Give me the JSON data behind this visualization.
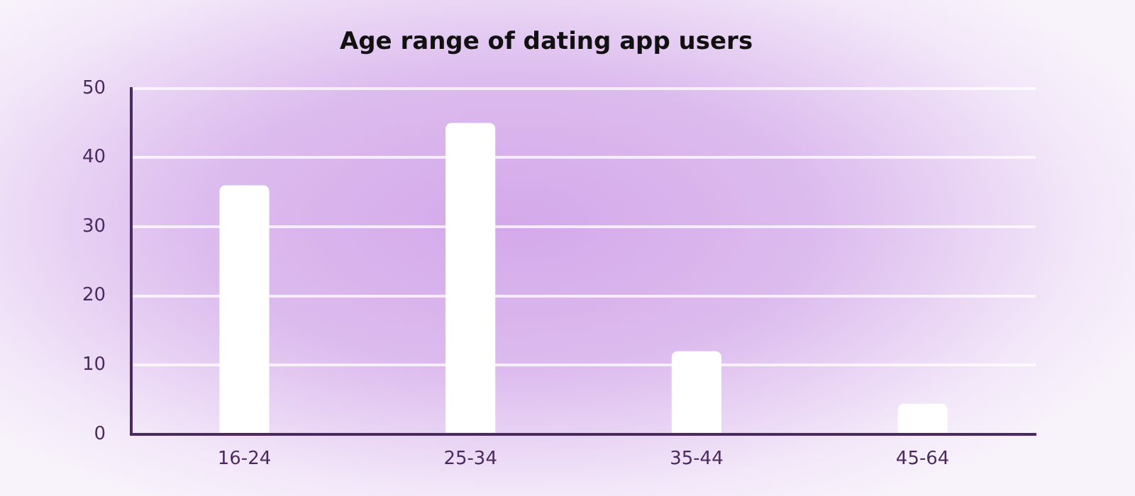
{
  "chart_data": {
    "type": "bar",
    "title": "Age range of dating app users",
    "categories": [
      "16-24",
      "25-34",
      "35-44",
      "45-64"
    ],
    "values": [
      36,
      45,
      12,
      4.4
    ],
    "color": "#ffffff",
    "ylim": [
      0,
      50
    ],
    "yticks": [
      0,
      10,
      20,
      30,
      40,
      50
    ],
    "grid": "y",
    "legend": false
  }
}
